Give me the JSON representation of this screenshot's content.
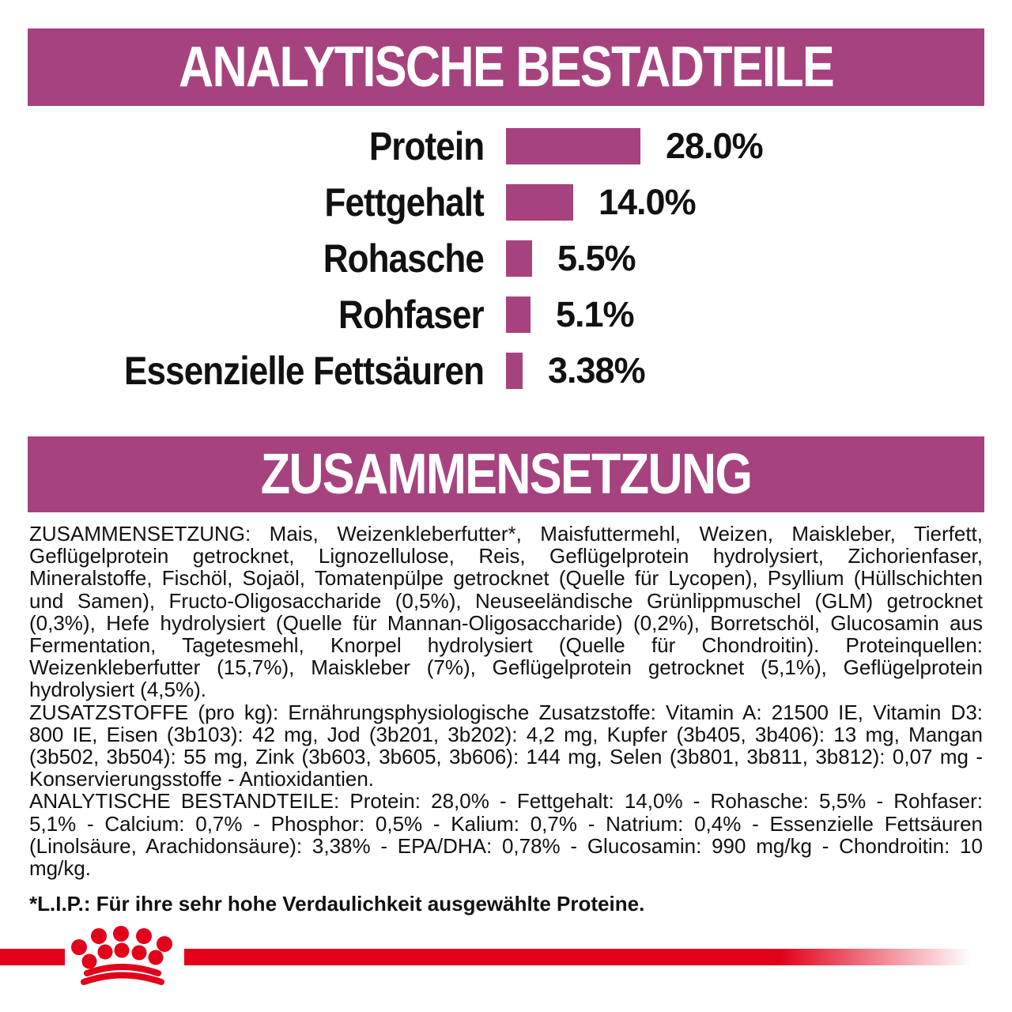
{
  "colors": {
    "plum": "#A6437F",
    "red": "#E2001A",
    "text": "#111111"
  },
  "banners": {
    "analytical": "ANALYTISCHE BESTADTEILE",
    "composition": "ZUSAMMENSETZUNG"
  },
  "chart": {
    "rows": [
      {
        "label": "Protein",
        "value": 28.0,
        "value_label": "28.0%"
      },
      {
        "label": "Fettgehalt",
        "value": 14.0,
        "value_label": "14.0%"
      },
      {
        "label": "Rohasche",
        "value": 5.5,
        "value_label": "5.5%"
      },
      {
        "label": "Rohfaser",
        "value": 5.1,
        "value_label": "5.1%"
      },
      {
        "label": "Essenzielle Fettsäuren",
        "value": 3.38,
        "value_label": "3.38%"
      }
    ]
  },
  "chart_data": {
    "type": "bar",
    "orientation": "horizontal",
    "title": "ANALYTISCHE BESTADTEILE",
    "categories": [
      "Protein",
      "Fettgehalt",
      "Rohasche",
      "Rohfaser",
      "Essenzielle Fettsäuren"
    ],
    "values": [
      28.0,
      14.0,
      5.5,
      5.1,
      3.38
    ],
    "value_labels": [
      "28.0%",
      "14.0%",
      "5.5%",
      "5.1%",
      "3.38%"
    ],
    "unit": "%",
    "xlim": [
      0,
      30
    ],
    "gridlines": false,
    "bar_color": "#A6437F",
    "legend": "none"
  },
  "body": {
    "composition": "ZUSAMMENSETZUNG: Mais, Weizenkleberfutter*, Maisfuttermehl, Weizen, Maiskleber, Tierfett, Geflügelprotein getrocknet, Lignozellulose, Reis, Geflügelprotein hydrolysiert, Zichorienfaser, Mineralstoffe, Fischöl, Sojaöl, Tomatenpülpe getrocknet (Quelle für Lycopen), Psyllium (Hüllschichten und Samen), Fructo-Oligosaccharide (0,5%), Neuseeländische Grünlippmuschel (GLM) getrocknet (0,3%), Hefe hydrolysiert (Quelle für Mannan-Oligosaccharide) (0,2%), Borretschöl, Glucosamin aus Fermentation, Tagetesmehl, Knorpel hydrolysiert (Quelle für Chondroitin). Proteinquellen: Weizenkleberfutter (15,7%), Maiskleber (7%), Geflügelprotein getrocknet (5,1%), Geflügelprotein hydrolysiert (4,5%).",
    "additives": "ZUSATZSTOFFE (pro kg): Ernährungsphysiologische Zusatzstoffe: Vitamin A: 21500 IE, Vitamin D3: 800 IE, Eisen (3b103): 42 mg, Jod (3b201, 3b202): 4,2 mg, Kupfer (3b405, 3b406): 13 mg, Mangan (3b502, 3b504): 55 mg, Zink (3b603, 3b605, 3b606): 144 mg, Selen (3b801, 3b811, 3b812): 0,07 mg - Konservierungsstoffe - Antioxidantien.",
    "analytical": "ANALYTISCHE BESTANDTEILE: Protein: 28,0% - Fettgehalt: 14,0% - Rohasche: 5,5% - Rohfaser: 5,1% - Calcium: 0,7% - Phosphor: 0,5% - Kalium: 0,7% - Natrium: 0,4% - Essenzielle Fettsäuren (Linolsäure, Arachidonsäure): 3,38% - EPA/DHA: 0,78% - Glucosamin: 990 mg/kg - Chondroitin: 10 mg/kg.",
    "footnote": "*L.I.P.: Für ihre sehr hohe Verdaulichkeit ausgewählte Proteine."
  },
  "footer": {
    "logo": "royal-canin-crown"
  }
}
